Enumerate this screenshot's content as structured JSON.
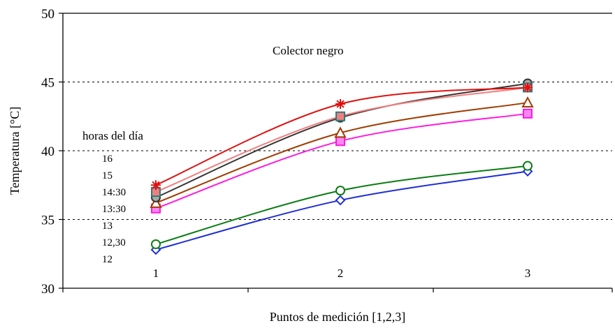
{
  "chart_data": {
    "type": "line",
    "title": "Colector negro",
    "xlabel": "Puntos de medición [1,2,3]",
    "ylabel": "Temperatura [°C]",
    "x": [
      1,
      2,
      3
    ],
    "x_tick_labels": [
      "1",
      "2",
      "3"
    ],
    "ylim": [
      30,
      50
    ],
    "y_ticks": [
      30,
      35,
      40,
      45,
      50
    ],
    "grid": "horizontal dashed at 35, 40, 45",
    "legend_title": "horas del día",
    "legend_placement": "left",
    "legend_entries": [
      "16",
      "15",
      "14:30",
      "13:30",
      "13",
      "12,30",
      "12"
    ],
    "series": [
      {
        "name": "12",
        "values": [
          32.8,
          36.4,
          38.5
        ],
        "color": "#1f2fd6",
        "marker": "diamond"
      },
      {
        "name": "12,30",
        "values": [
          33.2,
          37.1,
          38.9
        ],
        "color": "#0a7d14",
        "marker": "circle"
      },
      {
        "name": "13:30",
        "values": [
          35.8,
          40.7,
          42.7
        ],
        "color": "#ff19e0",
        "marker": "square"
      },
      {
        "name": "14:30",
        "values": [
          36.2,
          41.3,
          43.5
        ],
        "color": "#a03c00",
        "marker": "triangle"
      },
      {
        "name": "13",
        "values": [
          36.6,
          42.4,
          44.9
        ],
        "color": "#333333",
        "marker": "circle"
      },
      {
        "name": "15",
        "values": [
          37.0,
          42.5,
          44.6
        ],
        "color": "#f08080",
        "marker": "square"
      },
      {
        "name": "16",
        "values": [
          37.5,
          43.4,
          44.6
        ],
        "color": "#e01010",
        "marker": "star"
      }
    ]
  }
}
